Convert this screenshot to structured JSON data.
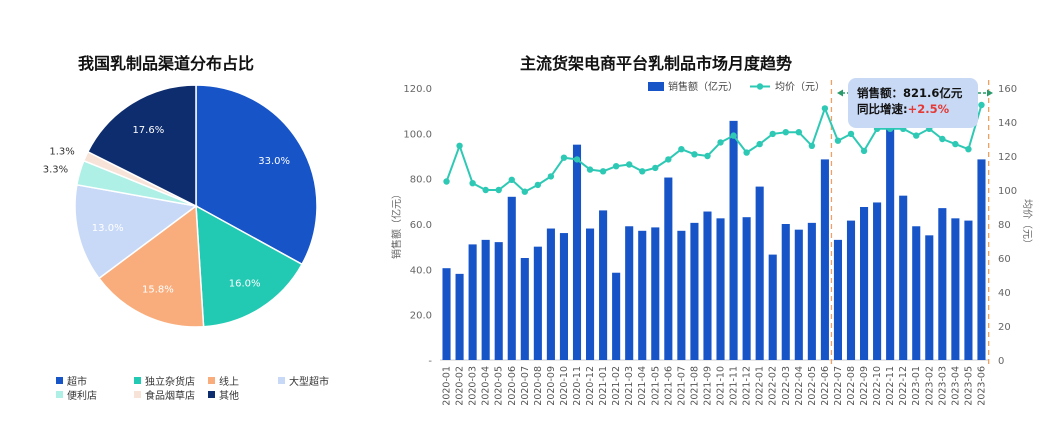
{
  "pie_title": "我国乳制品渠道分布占比",
  "bar_title": "主流货架电商平台乳制品市场月度趋势",
  "colors": {
    "pie": [
      "#1654c8",
      "#22c9b3",
      "#f9ad7c",
      "#c8d9f7",
      "#aef0e6",
      "#f7e3d8",
      "#0e2d6e"
    ],
    "bar": "#1654c8",
    "line": "#2ec9b5",
    "callout_bg": "#c8d9f5",
    "up": "#e53935",
    "dashed": "#f0a060",
    "arrow": "#2a9a6a"
  },
  "chart_data": [
    {
      "type": "pie",
      "title": "我国乳制品渠道分布占比",
      "slices": [
        {
          "label": "超市",
          "value": 33.0,
          "display": "33.0%"
        },
        {
          "label": "独立杂货店",
          "value": 16.0,
          "display": "16.0%"
        },
        {
          "label": "线上",
          "value": 15.8,
          "display": "15.8%"
        },
        {
          "label": "大型超市",
          "value": 13.0,
          "display": "13.0%"
        },
        {
          "label": "便利店",
          "value": 3.3,
          "display": "3.3%"
        },
        {
          "label": "食品烟草店",
          "value": 1.3,
          "display": "1.3%"
        },
        {
          "label": "其他",
          "value": 17.6,
          "display": "17.6%"
        }
      ]
    },
    {
      "type": "bar+line",
      "title": "主流货架电商平台乳制品市场月度趋势",
      "categories": [
        "2020-01",
        "2020-02",
        "2020-03",
        "2020-04",
        "2020-05",
        "2020-06",
        "2020-07",
        "2020-08",
        "2020-09",
        "2020-10",
        "2020-11",
        "2020-12",
        "2021-01",
        "2021-02",
        "2021-03",
        "2021-04",
        "2021-05",
        "2021-06",
        "2021-07",
        "2021-08",
        "2021-09",
        "2021-10",
        "2021-11",
        "2021-12",
        "2022-01",
        "2022-02",
        "2022-03",
        "2022-04",
        "2022-05",
        "2022-06",
        "2022-07",
        "2022-08",
        "2022-09",
        "2022-10",
        "2022-11",
        "2022-12",
        "2023-01",
        "2023-02",
        "2023-03",
        "2023-04",
        "2023-05",
        "2023-06"
      ],
      "series": [
        {
          "name": "销售额（亿元）",
          "type": "bar",
          "axis": "left",
          "values": [
            40.5,
            38,
            51,
            53,
            52,
            72,
            45,
            50,
            58,
            56,
            95,
            58,
            66,
            38.5,
            59,
            57,
            58.5,
            80.5,
            57,
            60.5,
            65.5,
            62.5,
            105.5,
            63,
            76.5,
            46.5,
            60,
            57.5,
            60.5,
            88.5,
            53,
            61.5,
            67.5,
            69.5,
            106,
            72.5,
            59,
            55,
            67,
            62.5,
            61.5,
            88.5
          ]
        },
        {
          "name": "均价（元）",
          "type": "line",
          "axis": "right",
          "values": [
            105,
            126,
            104,
            100,
            100,
            106,
            99,
            103,
            108,
            119,
            118,
            112,
            111,
            114,
            115,
            111,
            113,
            118,
            124,
            121,
            120,
            128,
            132,
            122,
            127,
            133,
            134,
            134,
            126,
            148,
            129,
            133,
            123,
            136,
            136,
            136,
            132,
            136,
            130,
            127,
            124,
            150
          ]
        }
      ],
      "y_left": {
        "label": "销售额（亿元）",
        "min": 0,
        "max": 120,
        "ticks": [
          "-",
          "20.0",
          "40.0",
          "60.0",
          "80.0",
          "100.0",
          "120.0"
        ]
      },
      "y_right": {
        "label": "均价（元）",
        "min": 0,
        "max": 160,
        "ticks": [
          "0",
          "20",
          "40",
          "60",
          "80",
          "100",
          "120",
          "140",
          "160"
        ]
      },
      "annotation": {
        "label1": "销售额：821.6亿元",
        "label2": "同比增速:",
        "value2": "+2.5%"
      }
    }
  ]
}
